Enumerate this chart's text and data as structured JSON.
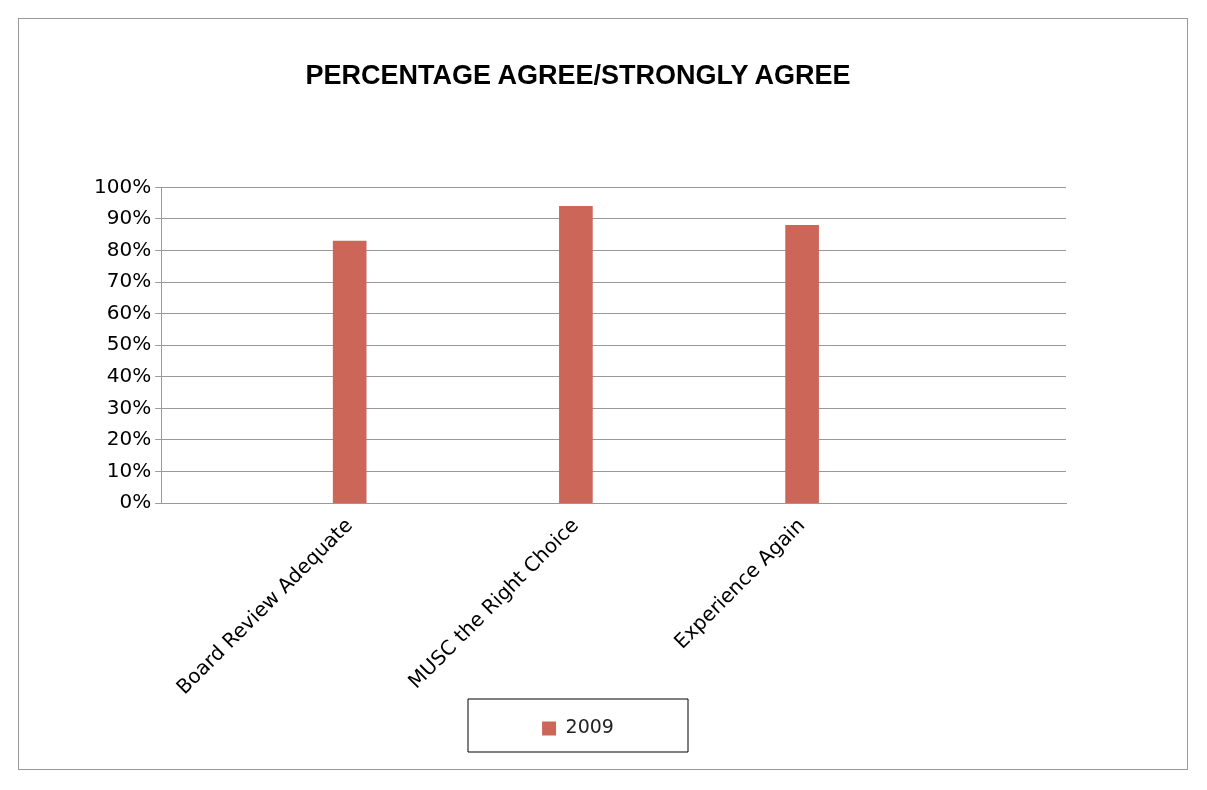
{
  "chart_data": {
    "type": "bar",
    "title": "PERCENTAGE AGREE/STRONGLY AGREE",
    "categories": [
      null,
      null,
      "Board Review Adequate",
      null,
      null,
      "MUSC the Right Choice",
      null,
      null,
      "Experience Again",
      null,
      null,
      null
    ],
    "series": [
      {
        "name": "2009",
        "color": "#cc6658",
        "values": [
          null,
          null,
          83,
          null,
          null,
          94,
          null,
          null,
          88,
          null,
          null,
          null
        ]
      }
    ],
    "ylim": [
      0,
      100
    ],
    "yticks": [
      {
        "value": 0,
        "label": "0%"
      },
      {
        "value": 10,
        "label": "10%"
      },
      {
        "value": 20,
        "label": "20%"
      },
      {
        "value": 30,
        "label": "30%"
      },
      {
        "value": 40,
        "label": "40%"
      },
      {
        "value": 50,
        "label": "50%"
      },
      {
        "value": 60,
        "label": "60%"
      },
      {
        "value": 70,
        "label": "70%"
      },
      {
        "value": 80,
        "label": "80%"
      },
      {
        "value": 90,
        "label": "90%"
      },
      {
        "value": 100,
        "label": "100%"
      }
    ],
    "grid": "y",
    "legend": "bottom"
  }
}
